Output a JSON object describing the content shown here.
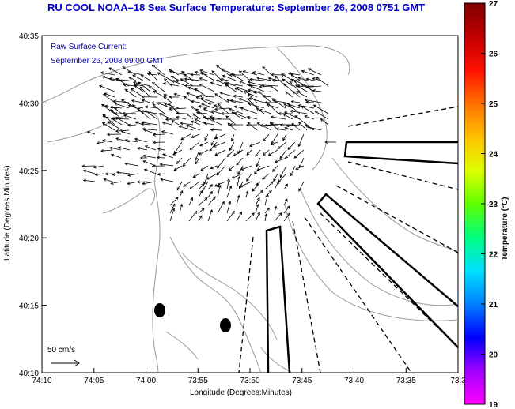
{
  "title": "RU COOL  NOAA–18  Sea Surface Temperature:  September 26, 2008 0751 GMT",
  "annotation": {
    "line1": "Raw Surface Current:",
    "line2": "September 26, 2008 09:00 GMT"
  },
  "scale_label": "50 cm/s",
  "x_axis": {
    "label": "Longitude (Degrees:Minutes)",
    "ticks": [
      "74:10",
      "74:05",
      "74:00",
      "73:55",
      "73:50",
      "73:45",
      "73:40",
      "73:35",
      "73:3"
    ]
  },
  "y_axis": {
    "label": "Latitude (Degrees:Minutes)",
    "ticks": [
      "40:35",
      "40:30",
      "40:25",
      "40:20",
      "40:15",
      "40:10"
    ]
  },
  "colorbar": {
    "label": "Temperature (°C)",
    "ticks": [
      "27",
      "26",
      "25",
      "24",
      "23",
      "22",
      "21",
      "20",
      "19"
    ],
    "min": 19,
    "max": 27,
    "colors": [
      "#ff00ff",
      "#a000ff",
      "#0000ff",
      "#0080ff",
      "#00e0ff",
      "#00ff80",
      "#60ff00",
      "#e0ff00",
      "#ffc000",
      "#ff7000",
      "#ff1000",
      "#c00000",
      "#800000"
    ]
  },
  "colors": {
    "title": "#0000c8",
    "annotation": "#0000a0",
    "contour": "#999999",
    "arrows": "#000000"
  },
  "chart_data": {
    "type": "map",
    "lon_range": [
      "74:10",
      "73:30"
    ],
    "lat_range": [
      "40:10",
      "40:35"
    ],
    "current_arrows": "dense field of surface current vectors over New York Harbor approaches",
    "scale_arrow_cms": 50
  }
}
